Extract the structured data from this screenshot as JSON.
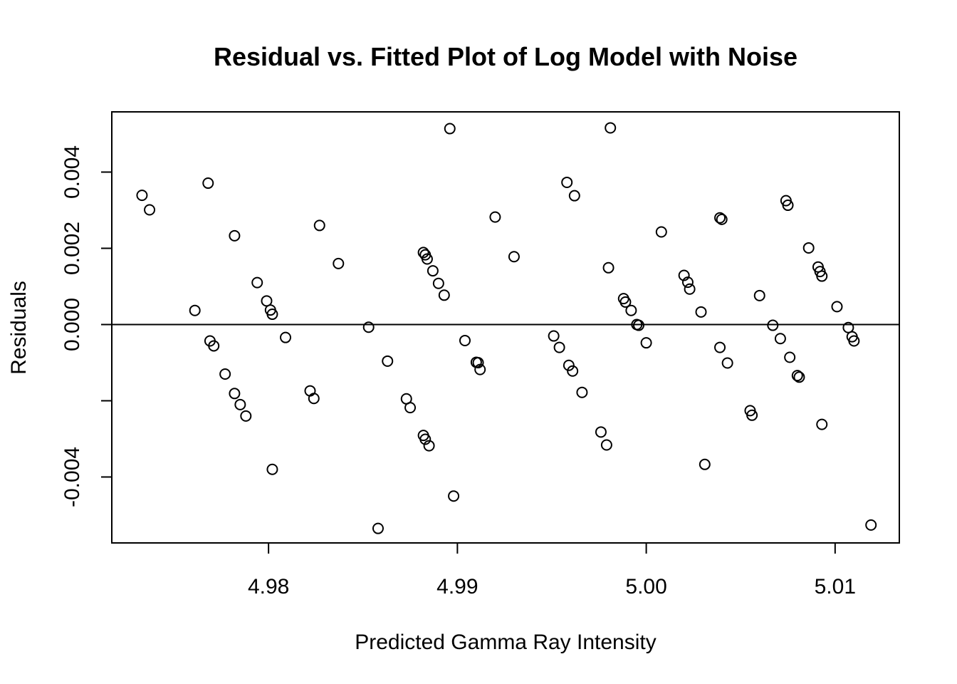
{
  "chart_data": {
    "type": "scatter",
    "title": "Residual vs. Fitted Plot of Log Model with Noise",
    "xlabel": "Predicted Gamma Ray Intensity",
    "ylabel": "Residuals",
    "xlim": [
      4.9717,
      5.0134
    ],
    "ylim": [
      -0.00573,
      0.00558
    ],
    "xticks": [
      4.98,
      4.99,
      5.0,
      5.01
    ],
    "xtick_labels": [
      "4.98",
      "4.99",
      "5.00",
      "5.01"
    ],
    "yticks": [
      -0.004,
      -0.002,
      0.0,
      0.002,
      0.004
    ],
    "ytick_labels": [
      "-0.004",
      "",
      "0.000",
      "0.002",
      "0.004"
    ],
    "reference_line_y": 0,
    "grid": false,
    "marker": "open-circle",
    "points": [
      [
        4.9733,
        0.00339
      ],
      [
        4.9737,
        0.00301
      ],
      [
        4.9761,
        0.00037
      ],
      [
        4.9768,
        0.00371
      ],
      [
        4.9769,
        -0.00043
      ],
      [
        4.9771,
        -0.00056
      ],
      [
        4.9777,
        -0.0013
      ],
      [
        4.9782,
        0.00233
      ],
      [
        4.9782,
        -0.00181
      ],
      [
        4.9785,
        -0.0021
      ],
      [
        4.9788,
        -0.0024
      ],
      [
        4.9794,
        0.0011
      ],
      [
        4.9799,
        0.00062
      ],
      [
        4.9801,
        0.00038
      ],
      [
        4.9802,
        0.00027
      ],
      [
        4.9802,
        -0.0038
      ],
      [
        4.9809,
        -0.00034
      ],
      [
        4.9822,
        -0.00174
      ],
      [
        4.9824,
        -0.00194
      ],
      [
        4.9827,
        0.0026
      ],
      [
        4.9837,
        0.0016
      ],
      [
        4.9853,
        -7e-05
      ],
      [
        4.9858,
        -0.00535
      ],
      [
        4.9863,
        -0.00096
      ],
      [
        4.9873,
        -0.00195
      ],
      [
        4.9875,
        -0.00218
      ],
      [
        4.9882,
        0.00189
      ],
      [
        4.9882,
        -0.00291
      ],
      [
        4.9883,
        0.00183
      ],
      [
        4.9883,
        -0.00301
      ],
      [
        4.9884,
        0.00172
      ],
      [
        4.9885,
        -0.00318
      ],
      [
        4.9887,
        0.00141
      ],
      [
        4.989,
        0.00108
      ],
      [
        4.9893,
        0.00077
      ],
      [
        4.9896,
        0.00514
      ],
      [
        4.9898,
        -0.0045
      ],
      [
        4.9904,
        -0.00042
      ],
      [
        4.991,
        -0.00099
      ],
      [
        4.9911,
        -0.001
      ],
      [
        4.9912,
        -0.00118
      ],
      [
        4.992,
        0.00282
      ],
      [
        4.993,
        0.00178
      ],
      [
        4.9951,
        -0.0003
      ],
      [
        4.9954,
        -0.0006
      ],
      [
        4.9958,
        0.00373
      ],
      [
        4.9959,
        -0.00107
      ],
      [
        4.9961,
        -0.00122
      ],
      [
        4.9962,
        0.00338
      ],
      [
        4.9966,
        -0.00178
      ],
      [
        4.9976,
        -0.00282
      ],
      [
        4.9979,
        -0.00316
      ],
      [
        4.998,
        0.00149
      ],
      [
        4.9981,
        0.00516
      ],
      [
        4.9988,
        0.00068
      ],
      [
        4.9989,
        0.00059
      ],
      [
        4.9992,
        0.00037
      ],
      [
        4.9995,
        0.0
      ],
      [
        4.9996,
        -2e-05
      ],
      [
        5.0,
        -0.00048
      ],
      [
        5.0008,
        0.00243
      ],
      [
        5.002,
        0.00129
      ],
      [
        5.0022,
        0.00111
      ],
      [
        5.0023,
        0.00093
      ],
      [
        5.0029,
        0.00033
      ],
      [
        5.0031,
        -0.00367
      ],
      [
        5.0039,
        0.0028
      ],
      [
        5.004,
        0.00276
      ],
      [
        5.0039,
        -0.0006
      ],
      [
        5.0043,
        -0.00101
      ],
      [
        5.0055,
        -0.00226
      ],
      [
        5.0056,
        -0.00238
      ],
      [
        5.006,
        0.00076
      ],
      [
        5.0067,
        -2e-05
      ],
      [
        5.0071,
        -0.00037
      ],
      [
        5.0074,
        0.00325
      ],
      [
        5.0075,
        0.00313
      ],
      [
        5.0076,
        -0.00086
      ],
      [
        5.008,
        -0.00134
      ],
      [
        5.0081,
        -0.00138
      ],
      [
        5.0086,
        0.00201
      ],
      [
        5.0091,
        0.00151
      ],
      [
        5.0092,
        0.00139
      ],
      [
        5.0093,
        0.00127
      ],
      [
        5.0093,
        -0.00262
      ],
      [
        5.0101,
        0.00047
      ],
      [
        5.0107,
        -8e-05
      ],
      [
        5.0109,
        -0.00032
      ],
      [
        5.011,
        -0.00043
      ],
      [
        5.0119,
        -0.00526
      ]
    ]
  }
}
